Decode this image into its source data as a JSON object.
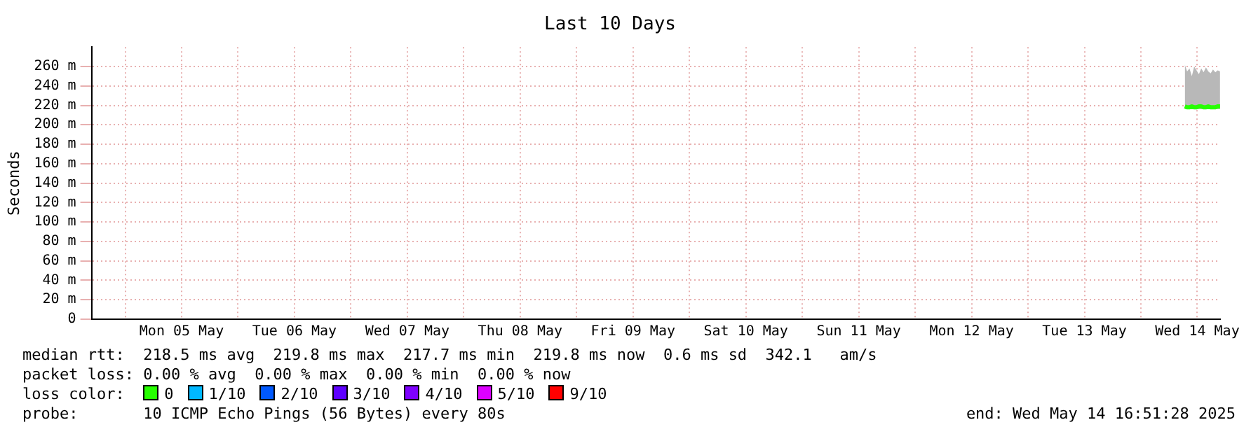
{
  "chart_data": {
    "type": "line",
    "title": "Last 10 Days",
    "ylabel": "Seconds",
    "legend_title": "loss color:",
    "legend": "bottom",
    "grid": true,
    "marker": "none",
    "line_style": "solid",
    "x": [
      "2025-05-14T09:20",
      "2025-05-14T09:50",
      "2025-05-14T10:20",
      "2025-05-14T10:50",
      "2025-05-14T11:20",
      "2025-05-14T11:50",
      "2025-05-14T12:20",
      "2025-05-14T12:50",
      "2025-05-14T13:20",
      "2025-05-14T13:50",
      "2025-05-14T14:20",
      "2025-05-14T14:50",
      "2025-05-14T15:20",
      "2025-05-14T15:50",
      "2025-05-14T16:20",
      "2025-05-14T16:50"
    ],
    "xlim": [
      "2025-05-04T16:51",
      "2025-05-14T16:51"
    ],
    "xticks": [
      {
        "value": "2025-05-05T00:00",
        "label": null
      },
      {
        "value": "2025-05-05T12:00",
        "label": "Mon 05 May"
      },
      {
        "value": "2025-05-06T00:00",
        "label": null
      },
      {
        "value": "2025-05-06T12:00",
        "label": "Tue 06 May"
      },
      {
        "value": "2025-05-07T00:00",
        "label": null
      },
      {
        "value": "2025-05-07T12:00",
        "label": "Wed 07 May"
      },
      {
        "value": "2025-05-08T00:00",
        "label": null
      },
      {
        "value": "2025-05-08T12:00",
        "label": "Thu 08 May"
      },
      {
        "value": "2025-05-09T00:00",
        "label": null
      },
      {
        "value": "2025-05-09T12:00",
        "label": "Fri 09 May"
      },
      {
        "value": "2025-05-10T00:00",
        "label": null
      },
      {
        "value": "2025-05-10T12:00",
        "label": "Sat 10 May"
      },
      {
        "value": "2025-05-11T00:00",
        "label": null
      },
      {
        "value": "2025-05-11T12:00",
        "label": "Sun 11 May"
      },
      {
        "value": "2025-05-12T00:00",
        "label": null
      },
      {
        "value": "2025-05-12T12:00",
        "label": "Mon 12 May"
      },
      {
        "value": "2025-05-13T00:00",
        "label": null
      },
      {
        "value": "2025-05-13T12:00",
        "label": "Tue 13 May"
      },
      {
        "value": "2025-05-14T00:00",
        "label": null
      },
      {
        "value": "2025-05-14T12:00",
        "label": "Wed 14 May"
      }
    ],
    "ylim": [
      0,
      280
    ],
    "yticks": [
      0,
      {
        "value": 20,
        "label": "20 m"
      },
      {
        "value": 40,
        "label": "40 m"
      },
      {
        "value": 60,
        "label": "60 m"
      },
      {
        "value": 80,
        "label": "80 m"
      },
      {
        "value": 100,
        "label": "100 m"
      },
      {
        "value": 120,
        "label": "120 m"
      },
      {
        "value": 140,
        "label": "140 m"
      },
      {
        "value": 160,
        "label": "160 m"
      },
      {
        "value": 180,
        "label": "180 m"
      },
      {
        "value": 200,
        "label": "200 m"
      },
      {
        "value": 220,
        "label": "220 m"
      },
      {
        "value": 240,
        "label": "240 m"
      },
      {
        "value": 260,
        "label": "260 m"
      }
    ],
    "series": [
      {
        "name": "0",
        "color": "#26ff00",
        "values": [
          219,
          218,
          218,
          219,
          218,
          218,
          219,
          219,
          218,
          218,
          219,
          218,
          218,
          218,
          219,
          219
        ],
        "lower": [
          216,
          216,
          216,
          216,
          216,
          216,
          216,
          216,
          216,
          216,
          216,
          216,
          216,
          216,
          216,
          216
        ],
        "upper": [
          262,
          255,
          258,
          250,
          260,
          256,
          252,
          258,
          254,
          259,
          255,
          253,
          257,
          254,
          256,
          255
        ]
      },
      {
        "name": "1/10",
        "color": "#00b8ff",
        "values": [
          null,
          null,
          null,
          null,
          null,
          null,
          null,
          null,
          null,
          null,
          null,
          null,
          null,
          null,
          null,
          null
        ]
      },
      {
        "name": "2/10",
        "color": "#0059ff",
        "values": [
          null,
          null,
          null,
          null,
          null,
          null,
          null,
          null,
          null,
          null,
          null,
          null,
          null,
          null,
          null,
          null
        ]
      },
      {
        "name": "3/10",
        "color": "#5e00ff",
        "values": [
          null,
          null,
          null,
          null,
          null,
          null,
          null,
          null,
          null,
          null,
          null,
          null,
          null,
          null,
          null,
          null
        ]
      },
      {
        "name": "4/10",
        "color": "#7e00ff",
        "values": [
          null,
          null,
          null,
          null,
          null,
          null,
          null,
          null,
          null,
          null,
          null,
          null,
          null,
          null,
          null,
          null
        ]
      },
      {
        "name": "5/10",
        "color": "#dd00ff",
        "values": [
          null,
          null,
          null,
          null,
          null,
          null,
          null,
          null,
          null,
          null,
          null,
          null,
          null,
          null,
          null,
          null
        ]
      },
      {
        "name": "9/10",
        "color": "#ff0000",
        "values": [
          null,
          null,
          null,
          null,
          null,
          null,
          null,
          null,
          null,
          null,
          null,
          null,
          null,
          null,
          null,
          null
        ]
      }
    ],
    "annotations": [
      "median rtt:  218.5 ms avg  219.8 ms max  217.7 ms min  219.8 ms now  0.6 ms sd  342.1   am/s",
      "packet loss: 0.00 % avg  0.00 % max  0.00 % min  0.00 % now",
      "probe:       10 ICMP Echo Pings (56 Bytes) every 80s",
      "end: Wed May 14 16:51:28 2025"
    ]
  }
}
